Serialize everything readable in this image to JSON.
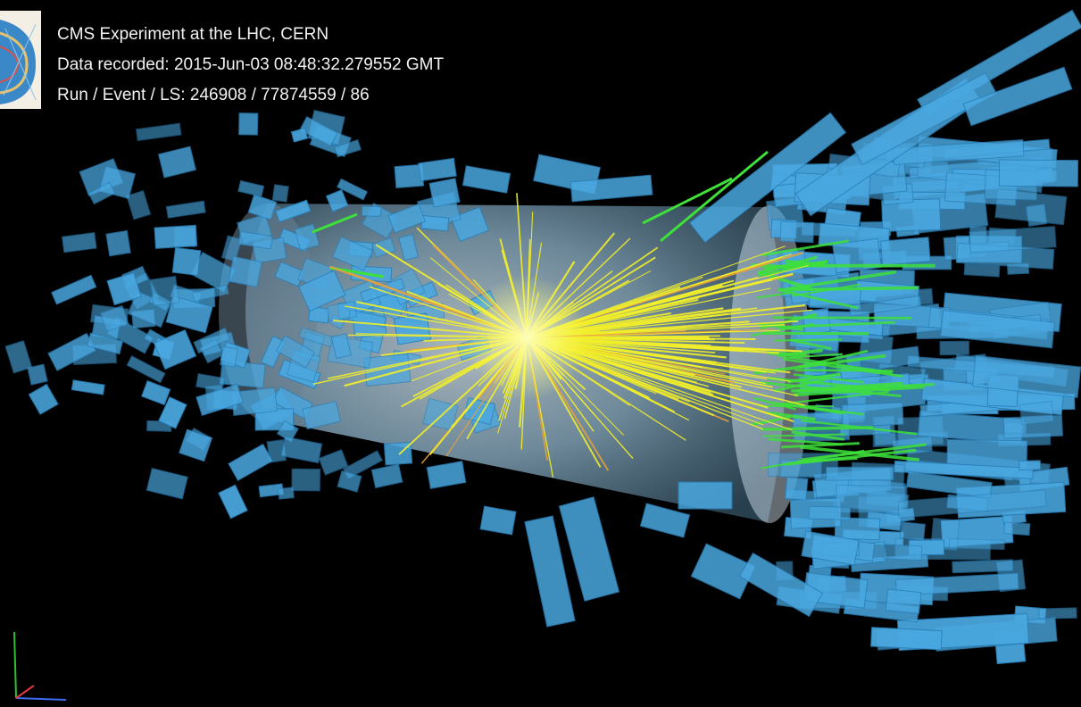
{
  "header": {
    "experiment": "CMS Experiment at the LHC, CERN",
    "recorded_label": "Data recorded:",
    "recorded_value": "2015-Jun-03 08:48:32.279552 GMT",
    "run_label": "Run / Event / LS:",
    "run_value": "246908 / 77874559 / 86"
  },
  "colors": {
    "background": "#000000",
    "calorimeter": "#4aa8e0",
    "calorimeter_dark": "#2a7fb8",
    "tracks": "#f2ef2a",
    "muon_tracks": "#3ee03a",
    "detector_barrel": "#cfe6f5"
  },
  "icons": {
    "logo": "cms-logo-icon",
    "axes": "xyz-axes-icon"
  }
}
